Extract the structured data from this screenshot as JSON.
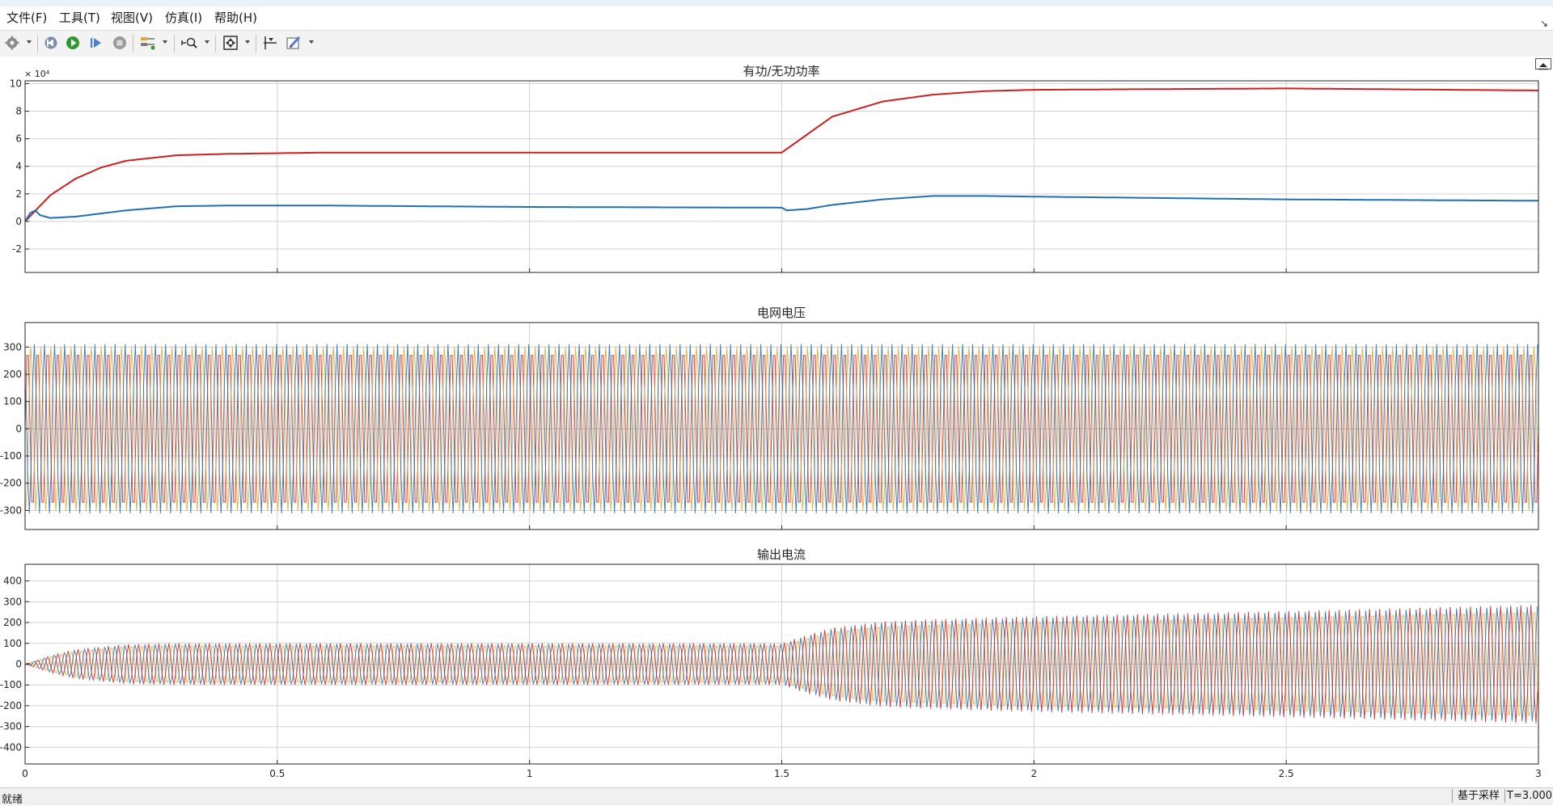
{
  "menu": {
    "items": [
      {
        "label": "文件(F)"
      },
      {
        "label": "工具(T)"
      },
      {
        "label": "视图(V)"
      },
      {
        "label": "仿真(I)"
      },
      {
        "label": "帮助(H)"
      }
    ]
  },
  "toolbar": {
    "buttons": [
      "settings-gear-icon",
      "step-back-icon",
      "run-icon",
      "step-forward-icon",
      "stop-icon",
      "signal-select-icon",
      "zoom-icon",
      "autoscale-icon",
      "cursor-measure-icon",
      "edit-style-icon"
    ]
  },
  "status": {
    "ready": "就绪",
    "mode": "基于采样",
    "time": "T=3.000"
  },
  "colors": {
    "red": "#cc1f1f",
    "blue": "#1f6fb2",
    "yellow": "#e8a531",
    "grid": "#d0d0d0",
    "axis": "#262626"
  },
  "chart_data": [
    {
      "type": "line",
      "title": "有功/无功功率",
      "exponent_label": "× 10⁴",
      "xlim": [
        0,
        3
      ],
      "ylim": [
        -3.7,
        10.2
      ],
      "x_ticks": [
        0,
        0.5,
        1,
        1.5,
        2,
        2.5,
        3
      ],
      "y_ticks": [
        -2,
        0,
        2,
        4,
        6,
        8,
        10
      ],
      "series": [
        {
          "color": "#cc1f1f",
          "x": [
            0,
            0.05,
            0.1,
            0.15,
            0.2,
            0.3,
            0.4,
            0.6,
            1.0,
            1.5,
            1.55,
            1.6,
            1.7,
            1.8,
            1.9,
            2.0,
            2.5,
            3.0
          ],
          "y": [
            0,
            1.9,
            3.1,
            3.9,
            4.4,
            4.8,
            4.9,
            5.0,
            5.0,
            5.0,
            6.3,
            7.6,
            8.7,
            9.2,
            9.45,
            9.55,
            9.65,
            9.5
          ]
        },
        {
          "color": "#1f6fb2",
          "x": [
            0,
            0.01,
            0.02,
            0.03,
            0.05,
            0.1,
            0.2,
            0.3,
            0.4,
            0.6,
            1.0,
            1.5,
            1.51,
            1.55,
            1.6,
            1.7,
            1.8,
            1.9,
            2.0,
            2.5,
            3.0
          ],
          "y": [
            0,
            0.6,
            0.8,
            0.45,
            0.25,
            0.35,
            0.8,
            1.1,
            1.15,
            1.15,
            1.05,
            1.0,
            0.8,
            0.9,
            1.2,
            1.6,
            1.85,
            1.85,
            1.8,
            1.6,
            1.5
          ]
        }
      ]
    },
    {
      "type": "line",
      "title": "电网电压",
      "xlim": [
        0,
        3
      ],
      "ylim": [
        -370,
        390
      ],
      "x_ticks": [
        0,
        0.5,
        1,
        1.5,
        2,
        2.5,
        3
      ],
      "y_ticks": [
        -300,
        -200,
        -100,
        0,
        100,
        200,
        300
      ],
      "signal": {
        "kind": "three-phase",
        "frequency_hz": 50,
        "amplitude": 311
      },
      "series": [
        {
          "color": "#cc1f1f",
          "phase_deg": 0
        },
        {
          "color": "#e8a531",
          "phase_deg": -120
        },
        {
          "color": "#1f6fb2",
          "phase_deg": 120
        }
      ]
    },
    {
      "type": "line",
      "title": "输出电流",
      "xlim": [
        0,
        3
      ],
      "ylim": [
        -480,
        480
      ],
      "x_ticks": [
        0,
        0.5,
        1,
        1.5,
        2,
        2.5,
        3
      ],
      "x_tick_labels": [
        "0",
        "0.5",
        "1",
        "1.5",
        "2",
        "2.5",
        "3"
      ],
      "y_ticks": [
        -400,
        -300,
        -200,
        -100,
        0,
        100,
        200,
        300,
        400
      ],
      "signal": {
        "kind": "three-phase",
        "frequency_hz": 50
      },
      "envelope": {
        "x": [
          0,
          0.05,
          0.1,
          0.2,
          0.3,
          1.5,
          1.55,
          1.6,
          1.7,
          1.8,
          2.0,
          2.5,
          3.0
        ],
        "y": [
          0,
          40,
          70,
          95,
          100,
          100,
          140,
          175,
          205,
          215,
          230,
          255,
          285
        ]
      },
      "series": [
        {
          "color": "#e8a531",
          "phase_deg": -120
        },
        {
          "color": "#1f6fb2",
          "phase_deg": 120
        },
        {
          "color": "#cc1f1f",
          "phase_deg": 0
        }
      ]
    }
  ]
}
